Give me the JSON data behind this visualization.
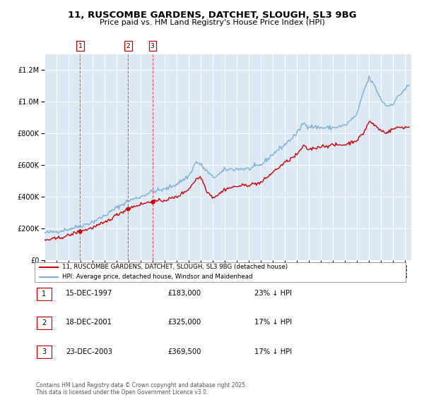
{
  "title": "11, RUSCOMBE GARDENS, DATCHET, SLOUGH, SL3 9BG",
  "subtitle": "Price paid vs. HM Land Registry's House Price Index (HPI)",
  "legend_line1": "11, RUSCOMBE GARDENS, DATCHET, SLOUGH, SL3 9BG (detached house)",
  "legend_line2": "HPI: Average price, detached house, Windsor and Maidenhead",
  "footnote": "Contains HM Land Registry data © Crown copyright and database right 2025.\nThis data is licensed under the Open Government Licence v3.0.",
  "transactions": [
    {
      "num": 1,
      "date": "15-DEC-1997",
      "price": "£183,000",
      "pct": "23% ↓ HPI"
    },
    {
      "num": 2,
      "date": "18-DEC-2001",
      "price": "£325,000",
      "pct": "17% ↓ HPI"
    },
    {
      "num": 3,
      "date": "23-DEC-2003",
      "price": "£369,500",
      "pct": "17% ↓ HPI"
    }
  ],
  "transaction_dates_decimal": [
    1997.96,
    2001.96,
    2003.97
  ],
  "transaction_prices": [
    183000,
    325000,
    369500
  ],
  "hpi_color": "#7bafd4",
  "price_color": "#cc0000",
  "background_color": "#dce9f5",
  "grid_color": "#ffffff",
  "vline_color": "#cc0000",
  "ylim": [
    0,
    1300000
  ],
  "xlim_start": 1995.0,
  "xlim_end": 2025.5,
  "hpi_anchors": [
    [
      1995.0,
      170000
    ],
    [
      1996.0,
      180000
    ],
    [
      1997.0,
      195000
    ],
    [
      1998.0,
      215000
    ],
    [
      1999.0,
      240000
    ],
    [
      2000.0,
      280000
    ],
    [
      2001.0,
      330000
    ],
    [
      2002.0,
      375000
    ],
    [
      2003.0,
      400000
    ],
    [
      2004.0,
      435000
    ],
    [
      2005.0,
      445000
    ],
    [
      2006.0,
      480000
    ],
    [
      2007.0,
      530000
    ],
    [
      2007.6,
      620000
    ],
    [
      2008.0,
      600000
    ],
    [
      2008.5,
      560000
    ],
    [
      2009.0,
      520000
    ],
    [
      2009.5,
      540000
    ],
    [
      2010.0,
      570000
    ],
    [
      2011.0,
      575000
    ],
    [
      2012.0,
      575000
    ],
    [
      2013.0,
      600000
    ],
    [
      2014.0,
      670000
    ],
    [
      2015.0,
      730000
    ],
    [
      2016.0,
      800000
    ],
    [
      2016.5,
      865000
    ],
    [
      2017.0,
      845000
    ],
    [
      2018.0,
      835000
    ],
    [
      2019.0,
      835000
    ],
    [
      2020.0,
      850000
    ],
    [
      2021.0,
      920000
    ],
    [
      2021.5,
      1060000
    ],
    [
      2022.0,
      1150000
    ],
    [
      2022.5,
      1090000
    ],
    [
      2023.0,
      1010000
    ],
    [
      2023.5,
      970000
    ],
    [
      2024.0,
      990000
    ],
    [
      2024.5,
      1040000
    ],
    [
      2025.25,
      1100000
    ]
  ],
  "price_anchors": [
    [
      1995.0,
      125000
    ],
    [
      1996.0,
      135000
    ],
    [
      1997.0,
      155000
    ],
    [
      1997.96,
      183000
    ],
    [
      1998.5,
      192000
    ],
    [
      1999.0,
      205000
    ],
    [
      2000.0,
      235000
    ],
    [
      2001.0,
      285000
    ],
    [
      2001.96,
      325000
    ],
    [
      2002.5,
      340000
    ],
    [
      2003.0,
      352000
    ],
    [
      2003.97,
      369500
    ],
    [
      2004.5,
      372000
    ],
    [
      2005.0,
      378000
    ],
    [
      2006.0,
      398000
    ],
    [
      2007.0,
      448000
    ],
    [
      2007.6,
      510000
    ],
    [
      2008.0,
      525000
    ],
    [
      2008.5,
      435000
    ],
    [
      2009.0,
      395000
    ],
    [
      2009.5,
      415000
    ],
    [
      2010.0,
      448000
    ],
    [
      2011.0,
      465000
    ],
    [
      2012.0,
      475000
    ],
    [
      2013.0,
      488000
    ],
    [
      2014.0,
      555000
    ],
    [
      2015.0,
      615000
    ],
    [
      2016.0,
      665000
    ],
    [
      2016.5,
      718000
    ],
    [
      2017.0,
      698000
    ],
    [
      2018.0,
      718000
    ],
    [
      2019.0,
      725000
    ],
    [
      2020.0,
      728000
    ],
    [
      2021.0,
      758000
    ],
    [
      2021.5,
      798000
    ],
    [
      2022.0,
      875000
    ],
    [
      2022.5,
      848000
    ],
    [
      2023.0,
      815000
    ],
    [
      2023.5,
      805000
    ],
    [
      2024.0,
      828000
    ],
    [
      2024.5,
      838000
    ],
    [
      2025.25,
      838000
    ]
  ]
}
